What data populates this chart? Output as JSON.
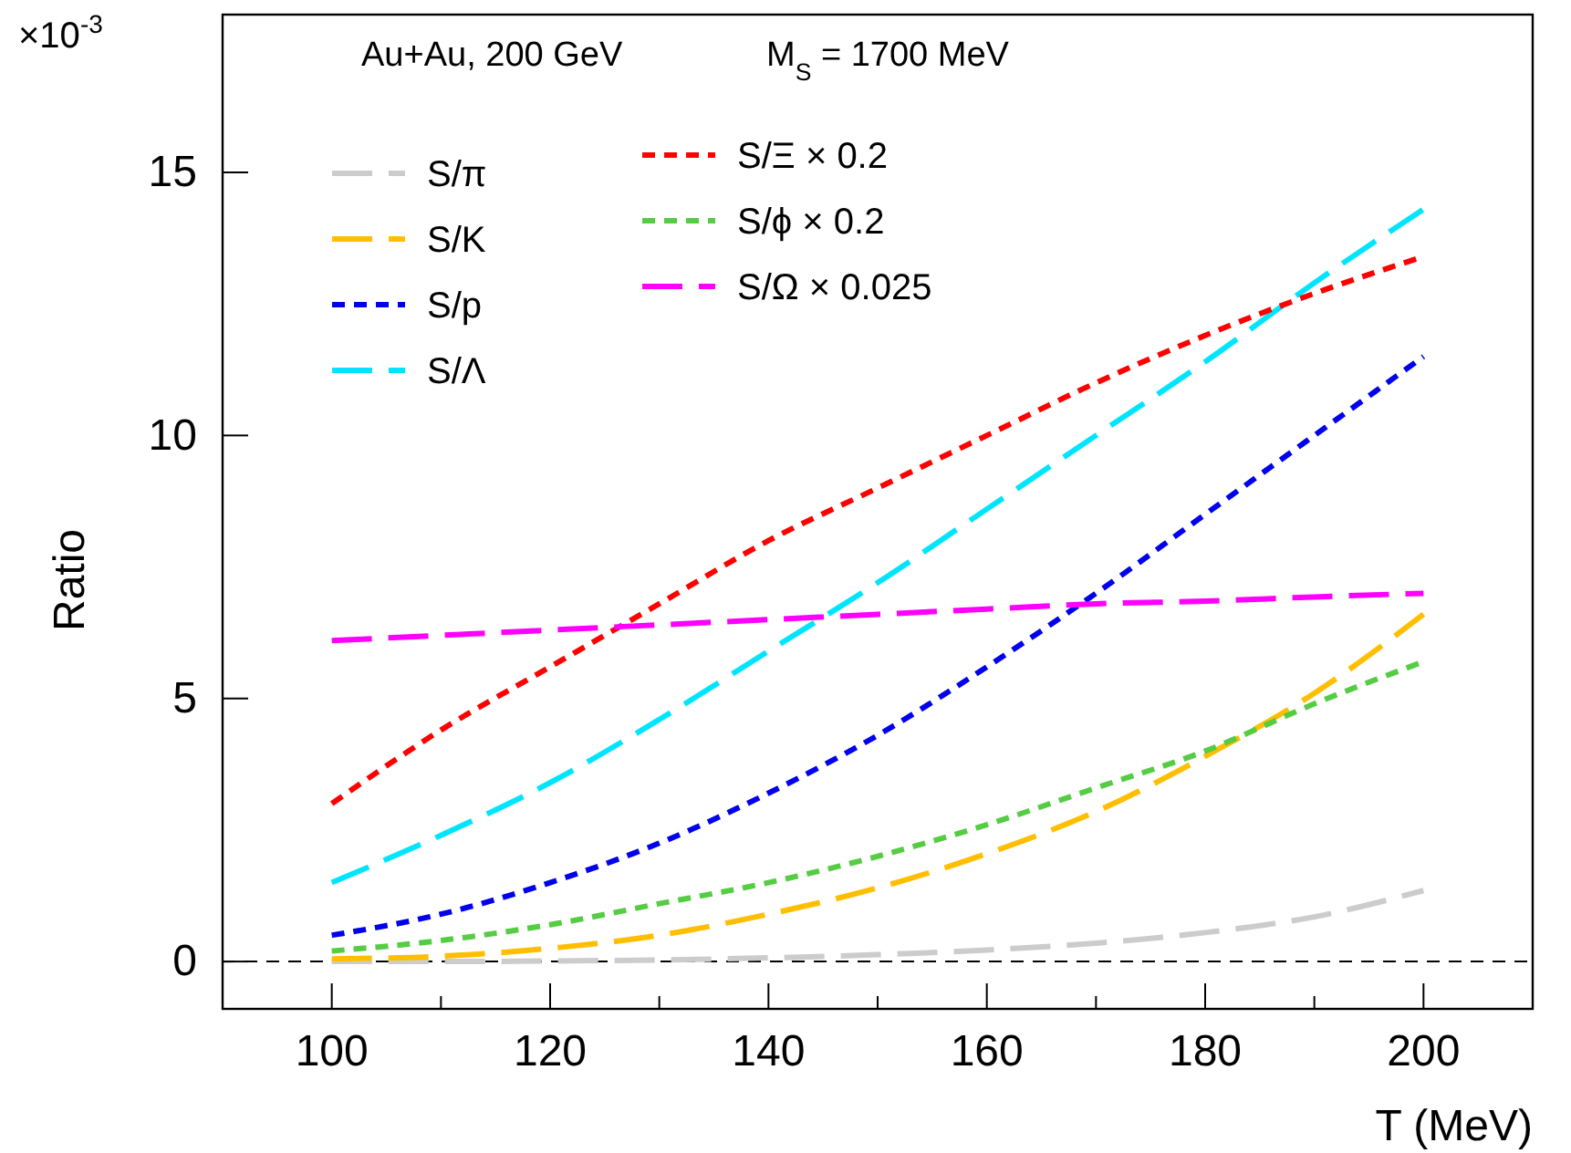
{
  "chart_data": {
    "type": "line",
    "xlabel": "T (MeV)",
    "ylabel": "Ratio",
    "annotations": [
      "×10$^{-3}$",
      "Au+Au, 200 GeV",
      "M$_{S}$ = 1700 MeV"
    ],
    "x": [
      100,
      110,
      120,
      130,
      140,
      150,
      160,
      170,
      180,
      190,
      200
    ],
    "xlim": [
      90,
      210
    ],
    "ylim": [
      -0.9,
      18
    ],
    "xticks": [
      {
        "value": 90,
        "label": null
      },
      100,
      {
        "value": 110,
        "label": null
      },
      120,
      {
        "value": 130,
        "label": null
      },
      140,
      {
        "value": 150,
        "label": null
      },
      160,
      {
        "value": 170,
        "label": null
      },
      180,
      {
        "value": 190,
        "label": null
      },
      200,
      {
        "value": 210,
        "label": null
      }
    ],
    "yticks": [
      0,
      5,
      10,
      15
    ],
    "legend": "top left",
    "grid": false,
    "marker": "none",
    "ref_lines": [
      {
        "axis": "y",
        "value": 0,
        "color": "#000000",
        "line_style": "dotted"
      }
    ],
    "series": [
      {
        "name": "S/π",
        "color": "#cccccc",
        "line_style": "dashed",
        "values": [
          0,
          0,
          0.01,
          0.03,
          0.07,
          0.13,
          0.22,
          0.35,
          0.55,
          0.85,
          1.35
        ]
      },
      {
        "name": "S/K",
        "color": "#ffbf00",
        "line_style": "dashed",
        "values": [
          0.05,
          0.1,
          0.25,
          0.5,
          0.9,
          1.4,
          2.05,
          2.85,
          3.9,
          5.1,
          6.6
        ]
      },
      {
        "name": "S/p",
        "color": "#0000ee",
        "line_style": "dotted",
        "values": [
          0.5,
          0.9,
          1.5,
          2.25,
          3.2,
          4.3,
          5.6,
          7.0,
          8.5,
          10.0,
          11.5
        ]
      },
      {
        "name": "S/Λ",
        "color": "#00e5ff",
        "line_style": "dashed",
        "values": [
          1.5,
          2.4,
          3.4,
          4.6,
          5.9,
          7.2,
          8.6,
          10.0,
          11.4,
          12.9,
          14.3
        ]
      },
      {
        "name": "S/Ξ × 0.2",
        "color": "#ff0000",
        "line_style": "dotted",
        "values": [
          3.0,
          4.4,
          5.6,
          6.8,
          8.0,
          9.0,
          10.0,
          11.0,
          11.9,
          12.7,
          13.4
        ]
      },
      {
        "name": "S/ϕ × 0.2",
        "color": "#55cc44",
        "line_style": "dotted",
        "values": [
          0.2,
          0.4,
          0.7,
          1.1,
          1.5,
          2.0,
          2.6,
          3.3,
          4.0,
          4.9,
          5.7
        ]
      },
      {
        "name": "S/Ω × 0.025",
        "color": "#ff00ff",
        "line_style": "dashed",
        "values": [
          6.1,
          6.2,
          6.3,
          6.4,
          6.5,
          6.6,
          6.7,
          6.8,
          6.85,
          6.93,
          7.0
        ]
      }
    ]
  }
}
